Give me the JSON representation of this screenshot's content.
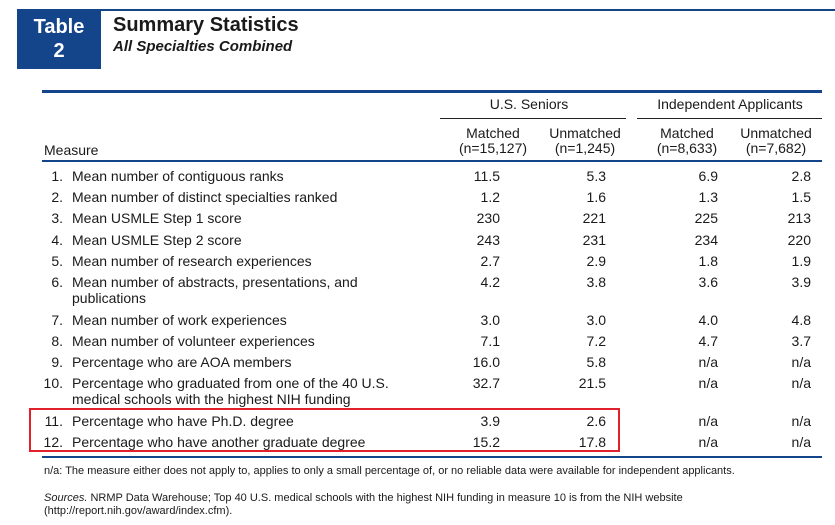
{
  "header": {
    "badge_line1": "Table",
    "badge_line2": "2",
    "title": "Summary Statistics",
    "subtitle": "All Specialties Combined"
  },
  "table": {
    "measure_header": "Measure",
    "groups": [
      "U.S. Seniors",
      "Independent Applicants"
    ],
    "columns": [
      {
        "name": "Matched",
        "n": "(n=15,127)"
      },
      {
        "name": "Unmatched",
        "n": "(n=1,245)"
      },
      {
        "name": "Matched",
        "n": "(n=8,633)"
      },
      {
        "name": "Unmatched",
        "n": "(n=7,682)"
      }
    ],
    "rows": [
      {
        "num": "1.",
        "label": "Mean number of contiguous ranks",
        "values": [
          "11.5",
          "5.3",
          "6.9",
          "2.8"
        ]
      },
      {
        "num": "2.",
        "label": "Mean number of distinct specialties ranked",
        "values": [
          "1.2",
          "1.6",
          "1.3",
          "1.5"
        ]
      },
      {
        "num": "3.",
        "label": "Mean USMLE Step 1 score",
        "values": [
          "230",
          "221",
          "225",
          "213"
        ]
      },
      {
        "num": "4.",
        "label": "Mean USMLE Step 2 score",
        "values": [
          "243",
          "231",
          "234",
          "220"
        ]
      },
      {
        "num": "5.",
        "label": "Mean number of research experiences",
        "values": [
          "2.7",
          "2.9",
          "1.8",
          "1.9"
        ]
      },
      {
        "num": "6.",
        "label": "Mean number of abstracts, presentations, and publications",
        "values": [
          "4.2",
          "3.8",
          "3.6",
          "3.9"
        ]
      },
      {
        "num": "7.",
        "label": "Mean number of work experiences",
        "values": [
          "3.0",
          "3.0",
          "4.0",
          "4.8"
        ]
      },
      {
        "num": "8.",
        "label": "Mean number of volunteer experiences",
        "values": [
          "7.1",
          "7.2",
          "4.7",
          "3.7"
        ]
      },
      {
        "num": "9.",
        "label": "Percentage who are AOA members",
        "values": [
          "16.0",
          "5.8",
          "n/a",
          "n/a"
        ]
      },
      {
        "num": "10.",
        "label": "Percentage who graduated from one of the 40 U.S. medical schools with the highest NIH funding",
        "values": [
          "32.7",
          "21.5",
          "n/a",
          "n/a"
        ]
      },
      {
        "num": "11.",
        "label": "Percentage who have Ph.D. degree",
        "values": [
          "3.9",
          "2.6",
          "n/a",
          "n/a"
        ]
      },
      {
        "num": "12.",
        "label": "Percentage who have another graduate degree",
        "values": [
          "15.2",
          "17.8",
          "n/a",
          "n/a"
        ]
      }
    ]
  },
  "notes": {
    "na_note": "n/a: The measure either does not apply to, applies to only a small percentage of, or no reliable data were available for independent applicants.",
    "sources_label": "Sources.",
    "sources_text": " NRMP Data Warehouse; Top 40 U.S. medical schools with the highest NIH funding in measure 10 is from the NIH website (http://report.nih.gov/award/index.cfm)."
  },
  "colors": {
    "accent": "#14458a",
    "highlight": "#e0202a"
  }
}
